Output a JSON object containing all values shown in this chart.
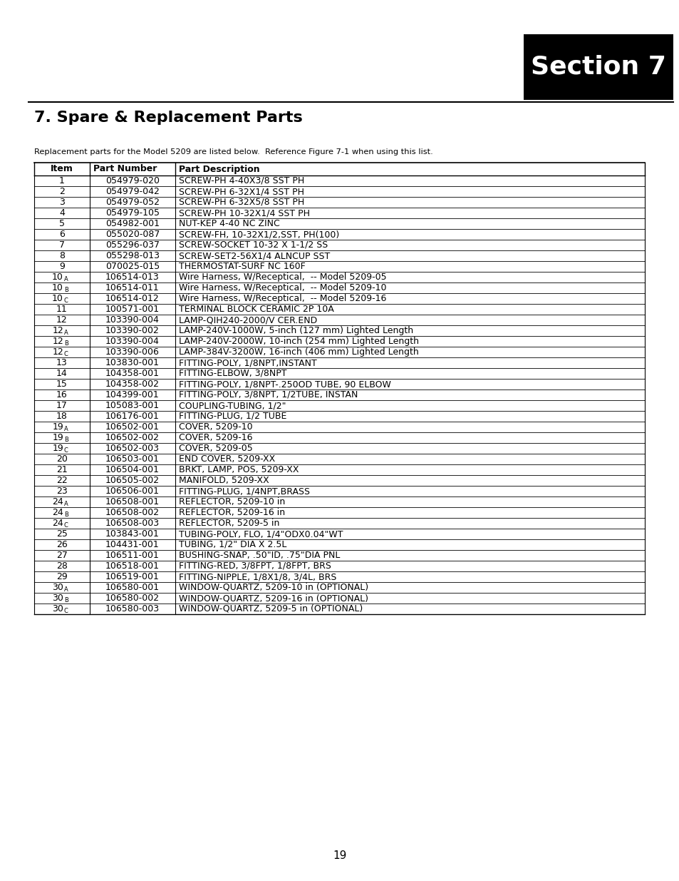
{
  "section_label": "Section 7",
  "title": "7. Spare & Replacement Parts",
  "intro_text": "Replacement parts for the Model 5209 are listed below.  Reference Figure 7-1 when using this list.",
  "page_number": "19",
  "col_headers": [
    "Item",
    "Part Number",
    "Part Description"
  ],
  "rows": [
    [
      "1",
      "054979-020",
      "SCREW-PH 4-40X3/8 SST PH"
    ],
    [
      "2",
      "054979-042",
      "SCREW-PH 6-32X1/4 SST PH"
    ],
    [
      "3",
      "054979-052",
      "SCREW-PH 6-32X5/8 SST PH"
    ],
    [
      "4",
      "054979-105",
      "SCREW-PH 10-32X1/4 SST PH"
    ],
    [
      "5",
      "054982-001",
      "NUT-KEP 4-40 NC ZINC"
    ],
    [
      "6",
      "055020-087",
      "SCREW-FH, 10-32X1/2,SST, PH(100)"
    ],
    [
      "7",
      "055296-037",
      "SCREW-SOCKET 10-32 X 1-1/2 SS"
    ],
    [
      "8",
      "055298-013",
      "SCREW-SET2-56X1/4 ALNCUP SST"
    ],
    [
      "9",
      "070025-015",
      "THERMOSTAT-SURF NC 160F"
    ],
    [
      "10A",
      "106514-013",
      "Wire Harness, W/Receptical,  -- Model 5209-05"
    ],
    [
      "10B",
      "106514-011",
      "Wire Harness, W/Receptical,  -- Model 5209-10"
    ],
    [
      "10C",
      "106514-012",
      "Wire Harness, W/Receptical,  -- Model 5209-16"
    ],
    [
      "11",
      "100571-001",
      "TERMINAL BLOCK CERAMIC 2P 10A"
    ],
    [
      "12",
      "103390-004",
      "LAMP-QIH240-2000/V CER.END"
    ],
    [
      "12A",
      "103390-002",
      "LAMP-240V-1000W, 5-inch (127 mm) Lighted Length"
    ],
    [
      "12B",
      "103390-004",
      "LAMP-240V-2000W, 10-inch (254 mm) Lighted Length"
    ],
    [
      "12C",
      "103390-006",
      "LAMP-384V-3200W, 16-inch (406 mm) Lighted Length"
    ],
    [
      "13",
      "103830-001",
      "FITTING-POLY, 1/8NPT,INSTANT"
    ],
    [
      "14",
      "104358-001",
      "FITTING-ELBOW, 3/8NPT"
    ],
    [
      "15",
      "104358-002",
      "FITTING-POLY, 1/8NPT-.250OD TUBE, 90 ELBOW"
    ],
    [
      "16",
      "104399-001",
      "FITTING-POLY, 3/8NPT, 1/2TUBE, INSTAN"
    ],
    [
      "17",
      "105083-001",
      "COUPLING-TUBING, 1/2\""
    ],
    [
      "18",
      "106176-001",
      "FITTING-PLUG, 1/2 TUBE"
    ],
    [
      "19A",
      "106502-001",
      "COVER, 5209-10"
    ],
    [
      "19B",
      "106502-002",
      "COVER, 5209-16"
    ],
    [
      "19C",
      "106502-003",
      "COVER, 5209-05"
    ],
    [
      "20",
      "106503-001",
      "END COVER, 5209-XX"
    ],
    [
      "21",
      "106504-001",
      "BRKT, LAMP, POS, 5209-XX"
    ],
    [
      "22",
      "106505-002",
      "MANIFOLD, 5209-XX"
    ],
    [
      "23",
      "106506-001",
      "FITTING-PLUG, 1/4NPT,BRASS"
    ],
    [
      "24A",
      "106508-001",
      "REFLECTOR, 5209-10 in"
    ],
    [
      "24B",
      "106508-002",
      "REFLECTOR, 5209-16 in"
    ],
    [
      "24C",
      "106508-003",
      "REFLECTOR, 5209-5 in"
    ],
    [
      "25",
      "103843-001",
      "TUBING-POLY, FLO, 1/4\"ODX0.04\"WT"
    ],
    [
      "26",
      "104431-001",
      "TUBING, 1/2\" DIA X 2.5L"
    ],
    [
      "27",
      "106511-001",
      "BUSHING-SNAP, .50\"ID, .75\"DIA PNL"
    ],
    [
      "28",
      "106518-001",
      "FITTING-RED, 3/8FPT, 1/8FPT, BRS"
    ],
    [
      "29",
      "106519-001",
      "FITTING-NIPPLE, 1/8X1/8, 3/4L, BRS"
    ],
    [
      "30A",
      "106580-001",
      "WINDOW-QUARTZ, 5209-10 in (OPTIONAL)"
    ],
    [
      "30B",
      "106580-002",
      "WINDOW-QUARTZ, 5209-16 in (OPTIONAL)"
    ],
    [
      "30C",
      "106580-003",
      "WINDOW-QUARTZ, 5209-5 in (OPTIONAL)"
    ]
  ],
  "background_color": "#ffffff",
  "section_box_color": "#000000",
  "section_text_color": "#ffffff",
  "line_color": "#000000"
}
